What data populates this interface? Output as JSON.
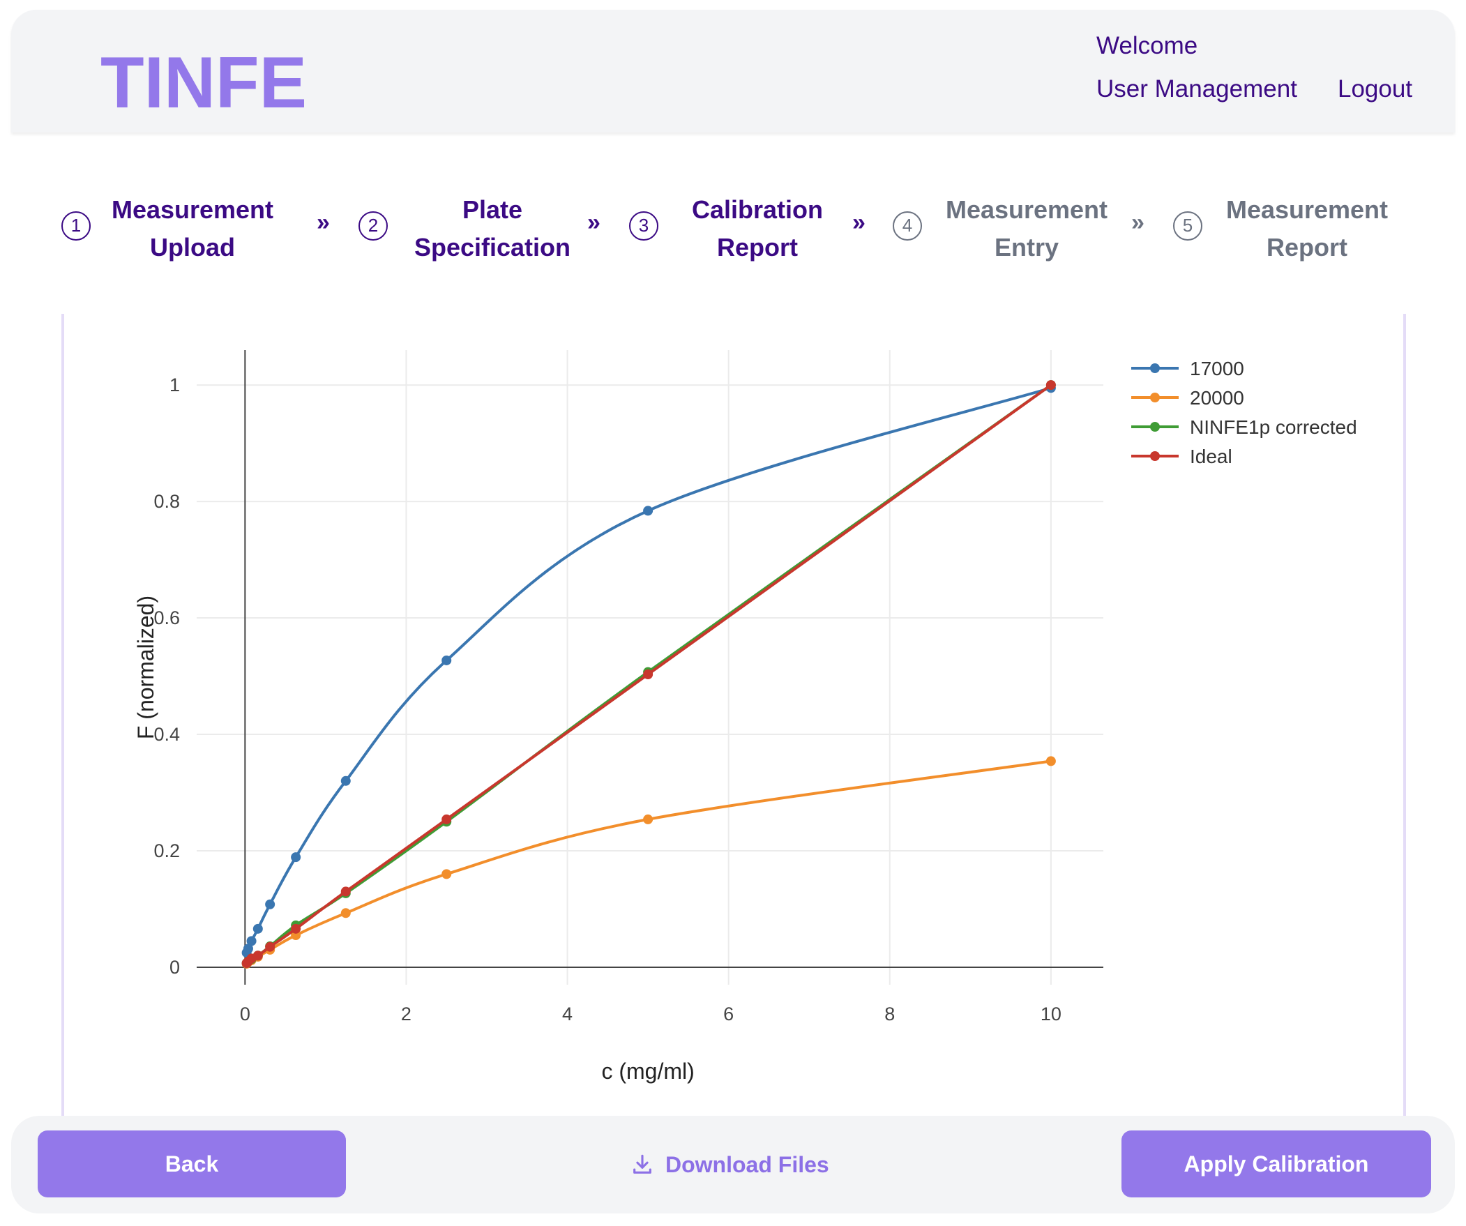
{
  "header": {
    "logo_text": "TINFE",
    "welcome": "Welcome",
    "user_management": "User Management",
    "logout": "Logout"
  },
  "stepper": {
    "separator": "»",
    "steps": [
      {
        "number": "1",
        "line1": "Measurement",
        "line2": "Upload",
        "active": true
      },
      {
        "number": "2",
        "line1": "Plate",
        "line2": "Specification",
        "active": true
      },
      {
        "number": "3",
        "line1": "Calibration",
        "line2": "Report",
        "active": true
      },
      {
        "number": "4",
        "line1": "Measurement",
        "line2": "Entry",
        "active": false
      },
      {
        "number": "5",
        "line1": "Measurement",
        "line2": "Report",
        "active": false
      }
    ]
  },
  "footer": {
    "back_label": "Back",
    "download_label": "Download Files",
    "download_icon": "download-icon",
    "apply_label": "Apply Calibration"
  },
  "colors": {
    "brand_dark": "#3b0a84",
    "brand_button": "#9378ea",
    "inactive_step": "#6b7280"
  },
  "chart_data": {
    "type": "line",
    "xlabel": "c (mg/ml)",
    "ylabel": "F (normalized)",
    "xlim": [
      -0.6,
      10.65
    ],
    "ylim": [
      -0.03,
      1.06
    ],
    "x_ticks": [
      0,
      2,
      4,
      6,
      8,
      10
    ],
    "y_ticks": [
      0,
      0.2,
      0.4,
      0.6,
      0.8,
      1
    ],
    "y_tick_labels": [
      "0",
      "0.2",
      "0.4",
      "0.6",
      "0.8",
      "1"
    ],
    "grid": true,
    "legend_position": "top-right",
    "series": [
      {
        "name": "17000",
        "color": "#3a76b0",
        "x": [
          0.02,
          0.04,
          0.08,
          0.16,
          0.31,
          0.63,
          1.25,
          2.5,
          5,
          10
        ],
        "y": [
          0.025,
          0.032,
          0.045,
          0.066,
          0.108,
          0.189,
          0.32,
          0.527,
          0.784,
          0.995
        ]
      },
      {
        "name": "20000",
        "color": "#f28e2b",
        "x": [
          0.02,
          0.04,
          0.08,
          0.16,
          0.31,
          0.63,
          1.25,
          2.5,
          5,
          10
        ],
        "y": [
          0.006,
          0.009,
          0.012,
          0.018,
          0.03,
          0.055,
          0.093,
          0.16,
          0.254,
          0.354
        ]
      },
      {
        "name": "NINFE1p corrected",
        "color": "#3f9c35",
        "x": [
          0.02,
          0.04,
          0.08,
          0.16,
          0.31,
          0.63,
          1.25,
          2.5,
          5,
          10
        ],
        "y": [
          0.007,
          0.01,
          0.014,
          0.02,
          0.036,
          0.072,
          0.127,
          0.25,
          0.507,
          1.0
        ]
      },
      {
        "name": "Ideal",
        "color": "#c8372d",
        "x": [
          0.02,
          0.04,
          0.08,
          0.16,
          0.31,
          0.63,
          1.25,
          2.5,
          5,
          10
        ],
        "y": [
          0.007,
          0.01,
          0.015,
          0.02,
          0.035,
          0.066,
          0.13,
          0.254,
          0.503,
          1.0
        ]
      }
    ]
  }
}
